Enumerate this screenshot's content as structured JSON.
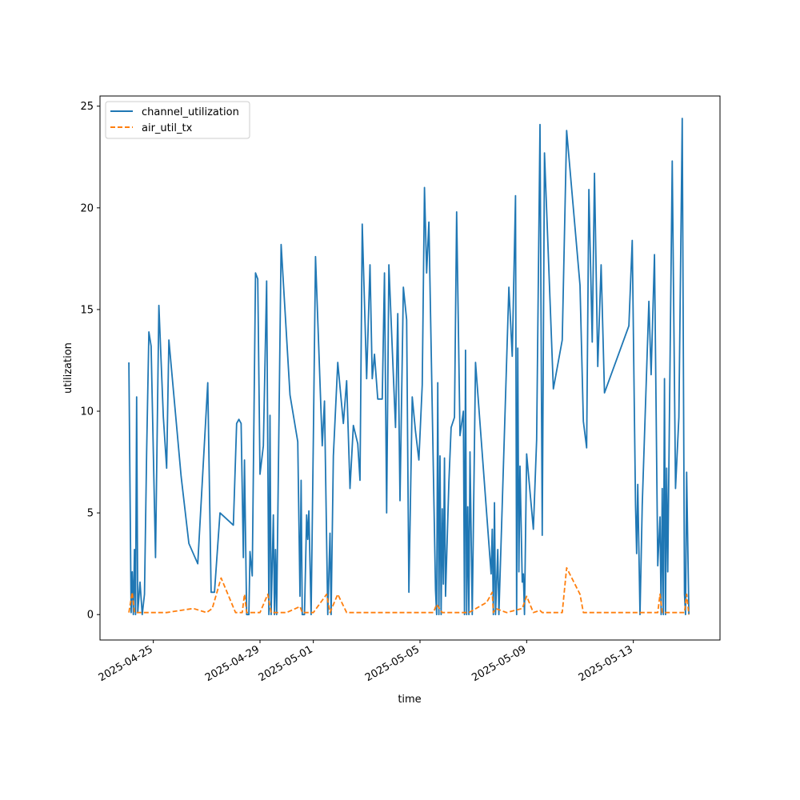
{
  "chart_data": {
    "type": "line",
    "xlabel": "time",
    "ylabel": "utilization",
    "xlim": [
      "2025-04-23T00:00",
      "2025-05-16T06:00"
    ],
    "ylim": [
      -1.25,
      25.5
    ],
    "x_ticks": [
      "2025-04-25",
      "2025-04-29",
      "2025-05-01",
      "2025-05-05",
      "2025-05-09",
      "2025-05-13"
    ],
    "y_ticks": [
      0,
      5,
      10,
      15,
      20,
      25
    ],
    "grid": false,
    "legend_position": "upper-left",
    "series": [
      {
        "name": "channel_utilization",
        "color": "#1f77b4",
        "style": "solid",
        "points": [
          [
            "2025-04-24T02:00",
            12.4
          ],
          [
            "2025-04-24T04:00",
            0.1
          ],
          [
            "2025-04-24T05:00",
            2.1
          ],
          [
            "2025-04-24T06:00",
            0.0
          ],
          [
            "2025-04-24T07:00",
            3.2
          ],
          [
            "2025-04-24T08:00",
            0.0
          ],
          [
            "2025-04-24T09:00",
            10.7
          ],
          [
            "2025-04-24T10:00",
            0.1
          ],
          [
            "2025-04-24T12:00",
            1.6
          ],
          [
            "2025-04-24T14:00",
            0.0
          ],
          [
            "2025-04-24T16:00",
            1.0
          ],
          [
            "2025-04-24T18:00",
            8.0
          ],
          [
            "2025-04-24T20:00",
            13.9
          ],
          [
            "2025-04-24T22:00",
            13.2
          ],
          [
            "2025-04-25T02:00",
            2.8
          ],
          [
            "2025-04-25T05:00",
            15.2
          ],
          [
            "2025-04-25T09:00",
            9.7
          ],
          [
            "2025-04-25T12:00",
            7.2
          ],
          [
            "2025-04-25T14:00",
            13.5
          ],
          [
            "2025-04-26T01:00",
            6.8
          ],
          [
            "2025-04-26T08:00",
            3.5
          ],
          [
            "2025-04-26T16:00",
            2.5
          ],
          [
            "2025-04-27T01:00",
            11.4
          ],
          [
            "2025-04-27T04:00",
            1.1
          ],
          [
            "2025-04-27T07:00",
            1.1
          ],
          [
            "2025-04-27T12:00",
            5.0
          ],
          [
            "2025-04-28T00:00",
            4.4
          ],
          [
            "2025-04-28T03:00",
            9.4
          ],
          [
            "2025-04-28T05:00",
            9.6
          ],
          [
            "2025-04-28T07:00",
            9.4
          ],
          [
            "2025-04-28T09:00",
            2.8
          ],
          [
            "2025-04-28T10:00",
            7.6
          ],
          [
            "2025-04-28T12:00",
            0.0
          ],
          [
            "2025-04-28T14:00",
            0.0
          ],
          [
            "2025-04-28T15:00",
            3.1
          ],
          [
            "2025-04-28T17:00",
            1.9
          ],
          [
            "2025-04-28T20:00",
            16.8
          ],
          [
            "2025-04-28T22:00",
            16.5
          ],
          [
            "2025-04-29T00:00",
            6.9
          ],
          [
            "2025-04-29T03:00",
            8.3
          ],
          [
            "2025-04-29T06:00",
            16.4
          ],
          [
            "2025-04-29T08:00",
            0.0
          ],
          [
            "2025-04-29T09:00",
            9.8
          ],
          [
            "2025-04-29T10:00",
            0.0
          ],
          [
            "2025-04-29T12:00",
            4.9
          ],
          [
            "2025-04-29T13:00",
            0.0
          ],
          [
            "2025-04-29T14:00",
            3.2
          ],
          [
            "2025-04-29T15:00",
            0.0
          ],
          [
            "2025-04-29T19:00",
            18.2
          ],
          [
            "2025-04-30T03:00",
            10.8
          ],
          [
            "2025-04-30T10:00",
            8.5
          ],
          [
            "2025-04-30T12:00",
            0.9
          ],
          [
            "2025-04-30T13:00",
            6.6
          ],
          [
            "2025-04-30T14:00",
            0.0
          ],
          [
            "2025-04-30T16:00",
            0.0
          ],
          [
            "2025-04-30T18:00",
            4.9
          ],
          [
            "2025-04-30T19:00",
            3.7
          ],
          [
            "2025-04-30T20:00",
            5.1
          ],
          [
            "2025-04-30T22:00",
            0.0
          ],
          [
            "2025-05-01T00:00",
            8.7
          ],
          [
            "2025-05-01T02:00",
            17.6
          ],
          [
            "2025-05-01T08:00",
            8.3
          ],
          [
            "2025-05-01T10:00",
            10.5
          ],
          [
            "2025-05-01T13:00",
            0.0
          ],
          [
            "2025-05-01T15:00",
            4.0
          ],
          [
            "2025-05-01T16:00",
            0.0
          ],
          [
            "2025-05-01T18:00",
            7.8
          ],
          [
            "2025-05-01T22:00",
            12.4
          ],
          [
            "2025-05-02T03:00",
            9.4
          ],
          [
            "2025-05-02T06:00",
            11.5
          ],
          [
            "2025-05-02T09:00",
            6.2
          ],
          [
            "2025-05-02T12:00",
            9.3
          ],
          [
            "2025-05-02T16:00",
            8.4
          ],
          [
            "2025-05-02T18:00",
            6.6
          ],
          [
            "2025-05-02T20:00",
            19.2
          ],
          [
            "2025-05-03T00:00",
            11.6
          ],
          [
            "2025-05-03T03:00",
            17.2
          ],
          [
            "2025-05-03T05:00",
            11.6
          ],
          [
            "2025-05-03T07:00",
            12.8
          ],
          [
            "2025-05-03T10:00",
            10.6
          ],
          [
            "2025-05-03T14:00",
            10.6
          ],
          [
            "2025-05-03T16:00",
            16.8
          ],
          [
            "2025-05-03T18:00",
            5.0
          ],
          [
            "2025-05-03T20:00",
            17.2
          ],
          [
            "2025-05-03T23:00",
            13.1
          ],
          [
            "2025-05-04T02:00",
            9.2
          ],
          [
            "2025-05-04T04:00",
            14.8
          ],
          [
            "2025-05-04T06:00",
            5.6
          ],
          [
            "2025-05-04T09:00",
            16.1
          ],
          [
            "2025-05-04T12:00",
            14.5
          ],
          [
            "2025-05-04T14:00",
            1.1
          ],
          [
            "2025-05-04T17:00",
            10.7
          ],
          [
            "2025-05-04T20:00",
            9.0
          ],
          [
            "2025-05-04T23:00",
            7.6
          ],
          [
            "2025-05-05T02:00",
            11.3
          ],
          [
            "2025-05-05T04:00",
            21.0
          ],
          [
            "2025-05-05T06:00",
            16.8
          ],
          [
            "2025-05-05T08:00",
            19.3
          ],
          [
            "2025-05-05T14:00",
            1.2
          ],
          [
            "2025-05-05T15:00",
            0.0
          ],
          [
            "2025-05-05T16:00",
            11.4
          ],
          [
            "2025-05-05T17:00",
            0.0
          ],
          [
            "2025-05-05T18:00",
            7.8
          ],
          [
            "2025-05-05T19:00",
            0.0
          ],
          [
            "2025-05-05T20:00",
            5.2
          ],
          [
            "2025-05-05T21:00",
            1.5
          ],
          [
            "2025-05-05T22:00",
            7.7
          ],
          [
            "2025-05-05T23:00",
            0.9
          ],
          [
            "2025-05-06T02:00",
            6.5
          ],
          [
            "2025-05-06T04:00",
            9.2
          ],
          [
            "2025-05-06T07:00",
            9.7
          ],
          [
            "2025-05-06T09:00",
            19.8
          ],
          [
            "2025-05-06T12:00",
            8.8
          ],
          [
            "2025-05-06T15:00",
            10.0
          ],
          [
            "2025-05-06T16:00",
            0.0
          ],
          [
            "2025-05-06T17:00",
            13.0
          ],
          [
            "2025-05-06T18:00",
            0.0
          ],
          [
            "2025-05-06T19:00",
            5.3
          ],
          [
            "2025-05-06T20:00",
            0.0
          ],
          [
            "2025-05-06T21:00",
            8.0
          ],
          [
            "2025-05-06T23:00",
            0.0
          ],
          [
            "2025-05-07T02:00",
            12.4
          ],
          [
            "2025-05-07T16:00",
            2.0
          ],
          [
            "2025-05-07T17:00",
            4.2
          ],
          [
            "2025-05-07T18:00",
            0.0
          ],
          [
            "2025-05-07T19:00",
            5.5
          ],
          [
            "2025-05-07T20:00",
            0.0
          ],
          [
            "2025-05-07T22:00",
            3.2
          ],
          [
            "2025-05-07T23:00",
            0.0
          ],
          [
            "2025-05-08T08:00",
            16.1
          ],
          [
            "2025-05-08T11:00",
            12.7
          ],
          [
            "2025-05-08T14:00",
            20.6
          ],
          [
            "2025-05-08T15:00",
            0.0
          ],
          [
            "2025-05-08T16:00",
            13.1
          ],
          [
            "2025-05-08T17:00",
            2.1
          ],
          [
            "2025-05-08T18:00",
            7.3
          ],
          [
            "2025-05-08T20:00",
            1.6
          ],
          [
            "2025-05-08T21:00",
            2.0
          ],
          [
            "2025-05-08T22:00",
            0.0
          ],
          [
            "2025-05-09T00:00",
            7.9
          ],
          [
            "2025-05-09T06:00",
            4.2
          ],
          [
            "2025-05-09T09:00",
            8.6
          ],
          [
            "2025-05-09T12:00",
            24.1
          ],
          [
            "2025-05-09T14:00",
            3.9
          ],
          [
            "2025-05-09T16:00",
            22.7
          ],
          [
            "2025-05-10T00:00",
            11.1
          ],
          [
            "2025-05-10T08:00",
            13.5
          ],
          [
            "2025-05-10T12:00",
            23.8
          ],
          [
            "2025-05-11T00:00",
            16.2
          ],
          [
            "2025-05-11T03:00",
            9.5
          ],
          [
            "2025-05-11T06:00",
            8.2
          ],
          [
            "2025-05-11T08:00",
            20.9
          ],
          [
            "2025-05-11T11:00",
            13.4
          ],
          [
            "2025-05-11T13:00",
            21.7
          ],
          [
            "2025-05-11T16:00",
            12.2
          ],
          [
            "2025-05-11T19:00",
            17.2
          ],
          [
            "2025-05-11T22:00",
            10.9
          ],
          [
            "2025-05-12T20:00",
            14.2
          ],
          [
            "2025-05-12T23:00",
            18.4
          ],
          [
            "2025-05-13T02:00",
            5.4
          ],
          [
            "2025-05-13T03:00",
            3.0
          ],
          [
            "2025-05-13T04:00",
            6.4
          ],
          [
            "2025-05-13T06:00",
            0.0
          ],
          [
            "2025-05-13T08:00",
            5.4
          ],
          [
            "2025-05-13T14:00",
            15.4
          ],
          [
            "2025-05-13T16:00",
            11.8
          ],
          [
            "2025-05-13T19:00",
            17.7
          ],
          [
            "2025-05-13T22:00",
            2.4
          ],
          [
            "2025-05-14T00:00",
            4.8
          ],
          [
            "2025-05-14T01:00",
            0.0
          ],
          [
            "2025-05-14T02:00",
            6.2
          ],
          [
            "2025-05-14T03:00",
            0.0
          ],
          [
            "2025-05-14T04:00",
            11.6
          ],
          [
            "2025-05-14T05:00",
            0.0
          ],
          [
            "2025-05-14T06:00",
            7.2
          ],
          [
            "2025-05-14T07:00",
            2.1
          ],
          [
            "2025-05-14T08:00",
            7.2
          ],
          [
            "2025-05-14T11:00",
            22.3
          ],
          [
            "2025-05-14T14:00",
            6.2
          ],
          [
            "2025-05-14T17:00",
            9.7
          ],
          [
            "2025-05-14T20:00",
            24.4
          ],
          [
            "2025-05-14T22:00",
            1.0
          ],
          [
            "2025-05-14T23:00",
            0.0
          ],
          [
            "2025-05-15T00:00",
            7.0
          ],
          [
            "2025-05-15T02:00",
            0.0
          ]
        ]
      },
      {
        "name": "air_util_tx",
        "color": "#ff7f0e",
        "style": "dashed",
        "points": [
          [
            "2025-04-24T02:00",
            0.1
          ],
          [
            "2025-04-24T05:00",
            1.1
          ],
          [
            "2025-04-24T07:00",
            0.1
          ],
          [
            "2025-04-24T12:00",
            0.1
          ],
          [
            "2025-04-25T00:00",
            0.1
          ],
          [
            "2025-04-25T12:00",
            0.1
          ],
          [
            "2025-04-26T00:00",
            0.2
          ],
          [
            "2025-04-26T12:00",
            0.3
          ],
          [
            "2025-04-27T00:00",
            0.1
          ],
          [
            "2025-04-27T05:00",
            0.3
          ],
          [
            "2025-04-27T13:00",
            1.8
          ],
          [
            "2025-04-28T02:00",
            0.1
          ],
          [
            "2025-04-28T08:00",
            0.1
          ],
          [
            "2025-04-28T10:00",
            1.0
          ],
          [
            "2025-04-28T12:00",
            0.1
          ],
          [
            "2025-04-29T00:00",
            0.1
          ],
          [
            "2025-04-29T07:00",
            1.0
          ],
          [
            "2025-04-29T10:00",
            0.1
          ],
          [
            "2025-04-30T00:00",
            0.1
          ],
          [
            "2025-04-30T12:00",
            0.4
          ],
          [
            "2025-04-30T14:00",
            0.1
          ],
          [
            "2025-05-01T00:00",
            0.1
          ],
          [
            "2025-05-01T12:00",
            1.0
          ],
          [
            "2025-05-01T15:00",
            0.1
          ],
          [
            "2025-05-01T22:00",
            1.0
          ],
          [
            "2025-05-02T06:00",
            0.1
          ],
          [
            "2025-05-03T00:00",
            0.1
          ],
          [
            "2025-05-04T00:00",
            0.1
          ],
          [
            "2025-05-05T00:00",
            0.1
          ],
          [
            "2025-05-05T12:00",
            0.1
          ],
          [
            "2025-05-05T15:00",
            0.5
          ],
          [
            "2025-05-05T20:00",
            0.1
          ],
          [
            "2025-05-06T12:00",
            0.1
          ],
          [
            "2025-05-06T20:00",
            0.1
          ],
          [
            "2025-05-07T12:00",
            0.6
          ],
          [
            "2025-05-07T17:00",
            1.1
          ],
          [
            "2025-05-07T18:00",
            0.1
          ],
          [
            "2025-05-07T20:00",
            0.3
          ],
          [
            "2025-05-08T06:00",
            0.1
          ],
          [
            "2025-05-08T20:00",
            0.3
          ],
          [
            "2025-05-09T00:00",
            0.9
          ],
          [
            "2025-05-09T06:00",
            0.1
          ],
          [
            "2025-05-09T12:00",
            0.2
          ],
          [
            "2025-05-09T14:00",
            0.1
          ],
          [
            "2025-05-10T08:00",
            0.1
          ],
          [
            "2025-05-10T12:00",
            2.3
          ],
          [
            "2025-05-11T00:00",
            1.0
          ],
          [
            "2025-05-11T03:00",
            0.1
          ],
          [
            "2025-05-12T00:00",
            0.1
          ],
          [
            "2025-05-12T12:00",
            0.1
          ],
          [
            "2025-05-13T00:00",
            0.1
          ],
          [
            "2025-05-13T12:00",
            0.1
          ],
          [
            "2025-05-13T22:00",
            0.1
          ],
          [
            "2025-05-14T00:00",
            1.0
          ],
          [
            "2025-05-14T02:00",
            0.1
          ],
          [
            "2025-05-14T22:00",
            0.1
          ],
          [
            "2025-05-15T00:00",
            1.0
          ],
          [
            "2025-05-15T02:00",
            0.0
          ]
        ]
      }
    ]
  }
}
